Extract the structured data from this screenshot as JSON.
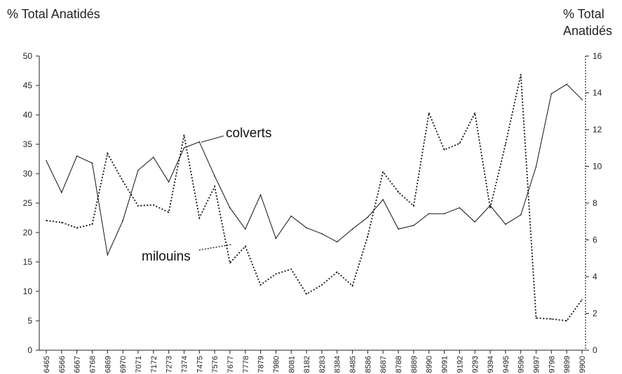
{
  "chart_data": {
    "type": "line",
    "ylabel_left": "% Total Anatidés",
    "ylabel_right": "% Total Anatidés",
    "ylim_left": [
      0,
      50
    ],
    "yticks_left": [
      0,
      5,
      10,
      15,
      20,
      25,
      30,
      35,
      40,
      45,
      50
    ],
    "ylim_right": [
      0,
      16
    ],
    "yticks_right": [
      0,
      2,
      4,
      6,
      8,
      10,
      12,
      14,
      16
    ],
    "categories": [
      "6465",
      "6566",
      "6667",
      "6768",
      "6869",
      "6970",
      "7071",
      "7172",
      "7273",
      "7374",
      "7475",
      "7576",
      "7677",
      "7778",
      "7879",
      "7980",
      "8081",
      "8182",
      "8283",
      "8384",
      "8485",
      "8586",
      "8687",
      "8788",
      "8889",
      "8990",
      "9091",
      "9192",
      "9293",
      "9394",
      "9495",
      "9596",
      "9697",
      "9798",
      "9899",
      "9900"
    ],
    "series": [
      {
        "name": "colverts",
        "axis": "left",
        "style": "solid",
        "values": [
          32.2,
          26.8,
          33.0,
          31.8,
          16.2,
          22.0,
          30.6,
          32.8,
          28.6,
          34.4,
          35.4,
          29.6,
          24.2,
          20.6,
          26.4,
          19.0,
          22.8,
          20.8,
          19.8,
          18.4,
          20.6,
          22.6,
          25.6,
          20.6,
          21.2,
          23.2,
          23.2,
          24.2,
          21.8,
          24.6,
          21.4,
          23.0,
          31.2,
          43.6,
          45.2,
          42.6
        ]
      },
      {
        "name": "milouins",
        "axis": "right",
        "style": "dotted",
        "values": [
          7.05,
          6.95,
          6.65,
          6.85,
          10.7,
          9.2,
          7.85,
          7.9,
          7.5,
          11.7,
          7.2,
          8.9,
          4.75,
          5.65,
          3.55,
          4.15,
          4.4,
          3.05,
          3.55,
          4.25,
          3.5,
          6.2,
          9.7,
          8.6,
          7.85,
          12.9,
          10.9,
          11.25,
          12.9,
          7.75,
          11.2,
          15.0,
          1.75,
          1.7,
          1.6,
          2.75
        ]
      }
    ],
    "annotations": [
      "colverts",
      "milouins"
    ],
    "grid": false,
    "legend": "none"
  }
}
